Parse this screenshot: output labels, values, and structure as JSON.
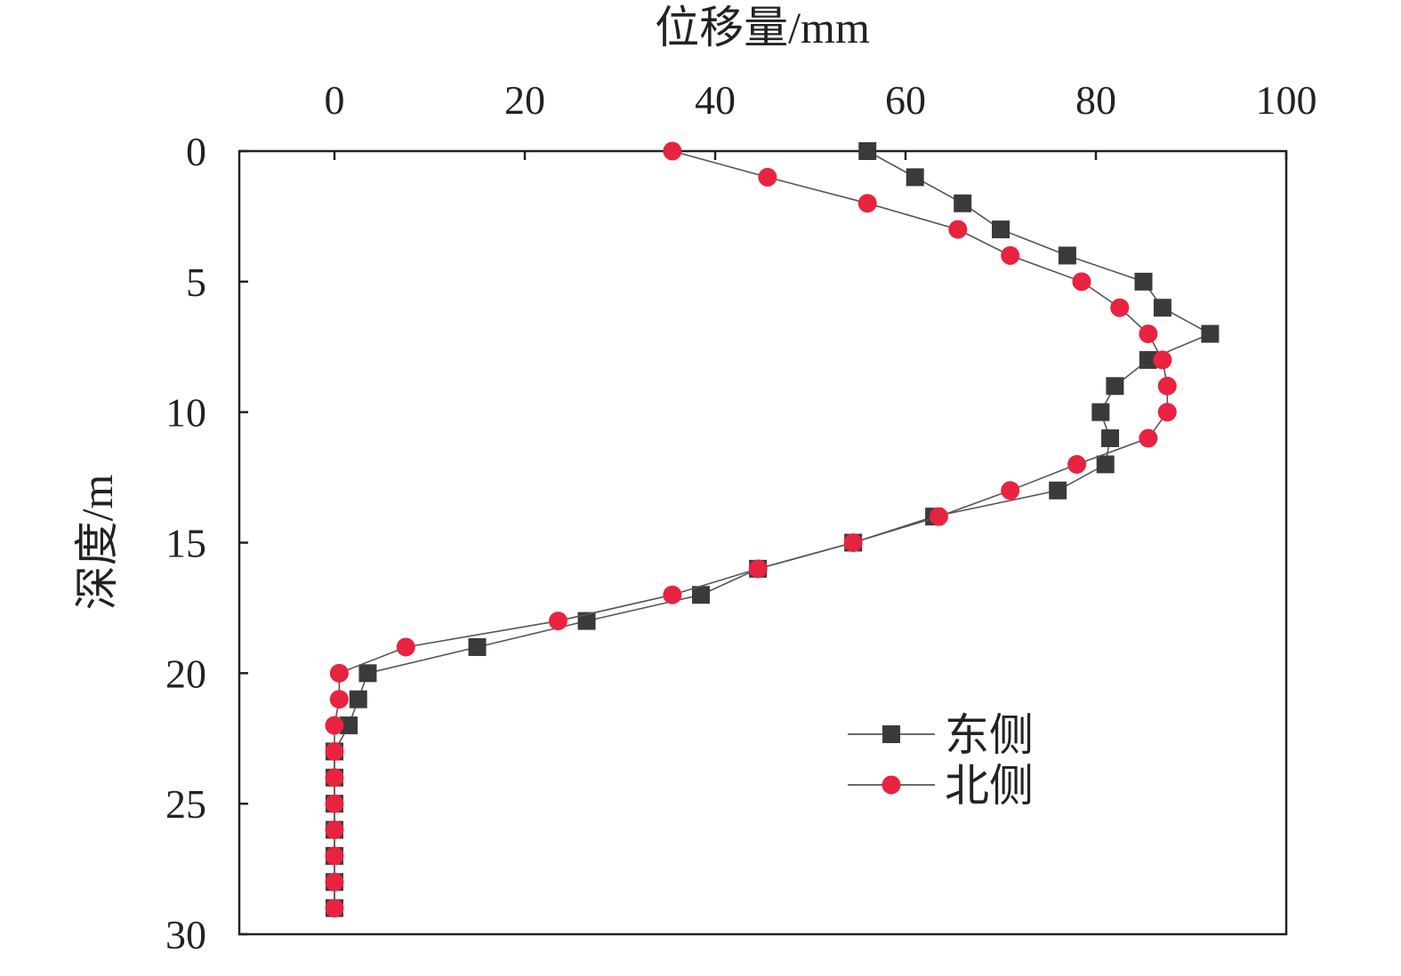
{
  "chart_data": {
    "type": "line",
    "xlabel": "位移量/mm",
    "ylabel": "深度/m",
    "xlim": [
      -10,
      100
    ],
    "ylim": [
      0,
      30
    ],
    "x_axis_position": "top",
    "y_axis_inverted": true,
    "x_ticks": [
      "0",
      "20",
      "40",
      "60",
      "80",
      "100"
    ],
    "y_ticks": [
      "0",
      "5",
      "10",
      "15",
      "20",
      "25",
      "30"
    ],
    "grid": false,
    "legend_position": "bottom-right",
    "series": [
      {
        "name": "东侧",
        "marker": "square",
        "color": "#3a3a3a",
        "points": [
          [
            56,
            0
          ],
          [
            61,
            1
          ],
          [
            66,
            2
          ],
          [
            70,
            3
          ],
          [
            77,
            4
          ],
          [
            85,
            5
          ],
          [
            87,
            6
          ],
          [
            92,
            7
          ],
          [
            85.5,
            8
          ],
          [
            82,
            9
          ],
          [
            80.5,
            10
          ],
          [
            81.5,
            11
          ],
          [
            81,
            12
          ],
          [
            76,
            13
          ],
          [
            63,
            14
          ],
          [
            54.5,
            15
          ],
          [
            44.5,
            16
          ],
          [
            38.5,
            17
          ],
          [
            26.5,
            18
          ],
          [
            15,
            19
          ],
          [
            3.5,
            20
          ],
          [
            2.5,
            21
          ],
          [
            1.5,
            22
          ],
          [
            0,
            23
          ],
          [
            0,
            24
          ],
          [
            0,
            25
          ],
          [
            0,
            26
          ],
          [
            0,
            27
          ],
          [
            0,
            28
          ],
          [
            0,
            29
          ]
        ]
      },
      {
        "name": "北侧",
        "marker": "circle",
        "color": "#e8233f",
        "points": [
          [
            35.5,
            0
          ],
          [
            45.5,
            1
          ],
          [
            56,
            2
          ],
          [
            65.5,
            3
          ],
          [
            71,
            4
          ],
          [
            78.5,
            5
          ],
          [
            82.5,
            6
          ],
          [
            85.5,
            7
          ],
          [
            87,
            8
          ],
          [
            87.5,
            9
          ],
          [
            87.5,
            10
          ],
          [
            85.5,
            11
          ],
          [
            78,
            12
          ],
          [
            71,
            13
          ],
          [
            63.5,
            14
          ],
          [
            54.5,
            15
          ],
          [
            44.5,
            16
          ],
          [
            35.5,
            17
          ],
          [
            23.5,
            18
          ],
          [
            7.5,
            19
          ],
          [
            0.5,
            20
          ],
          [
            0.5,
            21
          ],
          [
            0,
            22
          ],
          [
            0,
            23
          ],
          [
            0,
            24
          ],
          [
            0,
            25
          ],
          [
            0,
            26
          ],
          [
            0,
            27
          ],
          [
            0,
            28
          ],
          [
            0,
            29
          ]
        ]
      }
    ]
  }
}
